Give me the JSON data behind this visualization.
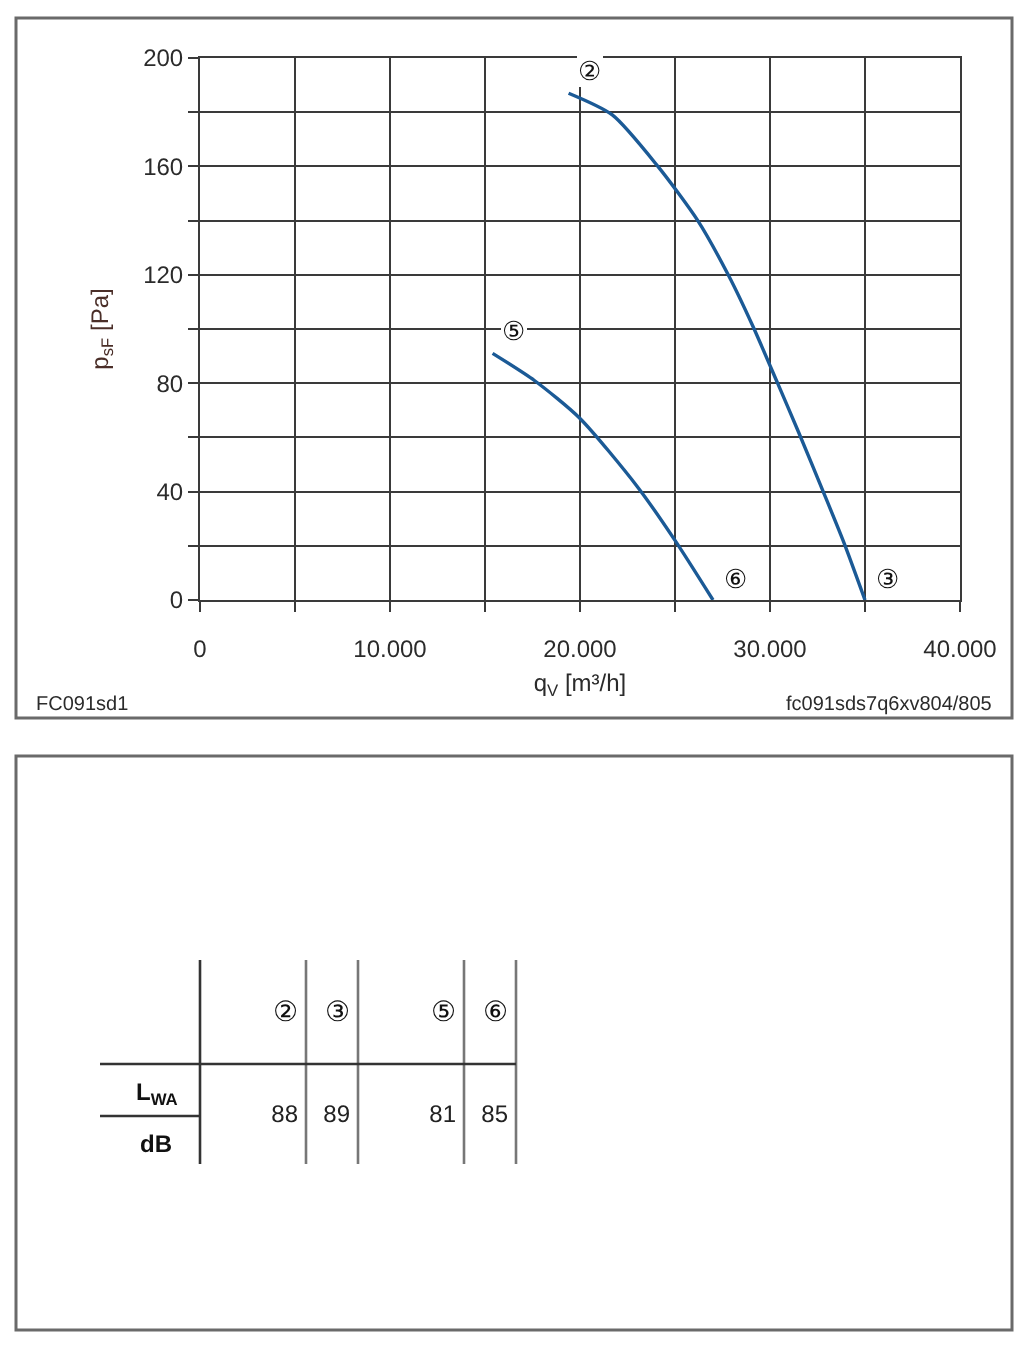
{
  "chart_data": [
    {
      "type": "line",
      "xlabel": "q$_{V}$ [m³/h]",
      "ylabel": "p$_{sF}$ [Pa]",
      "series": [
        {
          "color": "#1b5a96",
          "x": [
            19400,
            21700,
            24100,
            26200,
            27800,
            29100,
            30400,
            31500,
            32800,
            33900,
            35000
          ],
          "values": [
            187,
            179,
            160,
            140,
            120,
            101,
            80,
            62,
            40,
            21,
            0
          ]
        },
        {
          "color": "#1b5a96",
          "x": [
            15400,
            17600,
            20000,
            23000,
            25000,
            27000
          ],
          "values": [
            91,
            81,
            67,
            42,
            22,
            0
          ]
        }
      ],
      "xlim": [
        0,
        40000
      ],
      "ylim": [
        0,
        200
      ],
      "xticks": [
        0,
        {
          "value": 5000,
          "label": null
        },
        {
          "value": 10000,
          "label": "10.000"
        },
        {
          "value": 15000,
          "label": null
        },
        {
          "value": 20000,
          "label": "20.000"
        },
        {
          "value": 25000,
          "label": null
        },
        {
          "value": 30000,
          "label": "30.000"
        },
        {
          "value": 35000,
          "label": null
        },
        {
          "value": 40000,
          "label": "40.000"
        }
      ],
      "yticks": [
        0,
        {
          "value": 20,
          "label": null
        },
        40,
        {
          "value": 60,
          "label": null
        },
        80,
        {
          "value": 100,
          "label": null
        },
        120,
        {
          "value": 140,
          "label": null
        },
        160,
        {
          "value": 180,
          "label": null
        },
        200
      ],
      "grid": true,
      "annotations": [
        {
          "text": "②",
          "x": 19400,
          "y": 187
        },
        {
          "text": "③",
          "x": 35000,
          "y": 0
        },
        {
          "text": "⑤",
          "x": 15400,
          "y": 91
        },
        {
          "text": "⑥",
          "x": 27000,
          "y": 0
        },
        "FC091sd1",
        "fc091sds7q6xv804/805"
      ]
    },
    {
      "type": "other",
      "categories": [
        "②",
        "③",
        "⑤",
        "⑥"
      ],
      "values": [
        88,
        89,
        81,
        85
      ],
      "data_labels": true,
      "ylabel": "L$_{WA}$",
      "annotations": [
        "dB"
      ]
    }
  ]
}
